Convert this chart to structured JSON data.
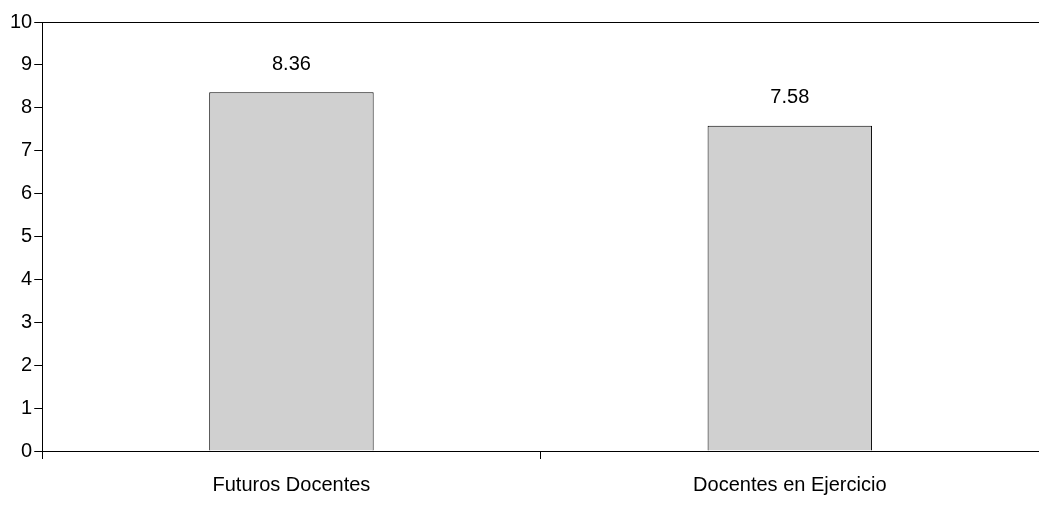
{
  "chart_data": {
    "type": "bar",
    "categories": [
      "Futuros Docentes",
      "Docentes en Ejercicio"
    ],
    "values": [
      8.36,
      7.58
    ],
    "color": "#d0d0d0",
    "ylim": [
      0,
      10
    ],
    "yticks": [
      0,
      1,
      2,
      3,
      4,
      5,
      6,
      7,
      8,
      9,
      10
    ],
    "grid": false,
    "data_labels": true
  }
}
